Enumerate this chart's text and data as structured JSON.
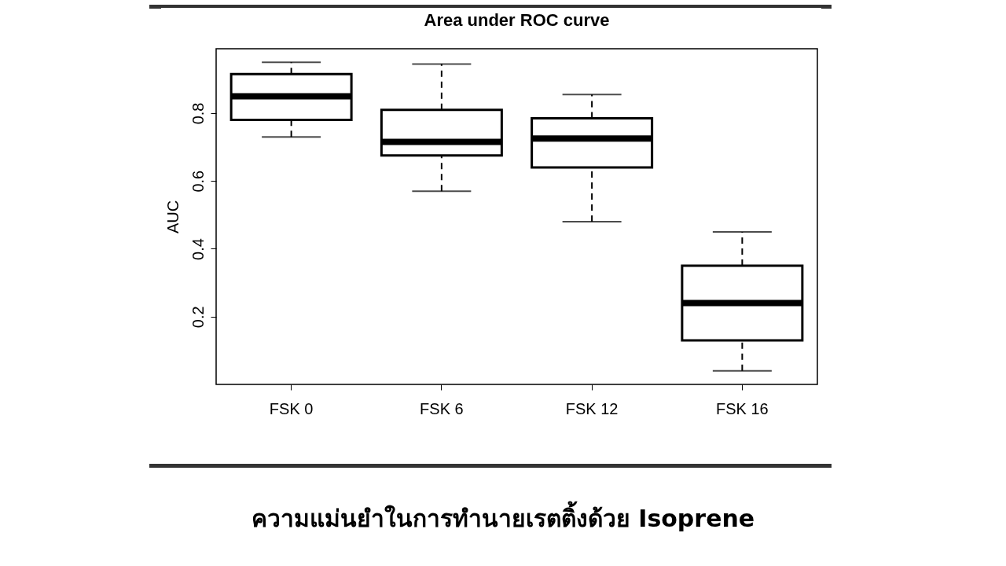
{
  "chart_data": {
    "type": "box",
    "title": "Area under ROC curve",
    "ylabel": "AUC",
    "categories": [
      "FSK 0",
      "FSK 6",
      "FSK 12",
      "FSK 16"
    ],
    "boxes": [
      {
        "low": 0.73,
        "q1": 0.78,
        "median": 0.85,
        "q3": 0.915,
        "high": 0.95
      },
      {
        "low": 0.57,
        "q1": 0.675,
        "median": 0.715,
        "q3": 0.81,
        "high": 0.945
      },
      {
        "low": 0.48,
        "q1": 0.64,
        "median": 0.725,
        "q3": 0.785,
        "high": 0.855
      },
      {
        "low": 0.04,
        "q1": 0.13,
        "median": 0.24,
        "q3": 0.35,
        "high": 0.45
      }
    ],
    "ylim": [
      0,
      0.99
    ],
    "yticks": [
      0.2,
      0.4,
      0.6,
      0.8
    ],
    "grid": false,
    "annotations": [
      "ความแม่นยำในการทำนายเรตติ้งด้วย Isoprene"
    ]
  }
}
